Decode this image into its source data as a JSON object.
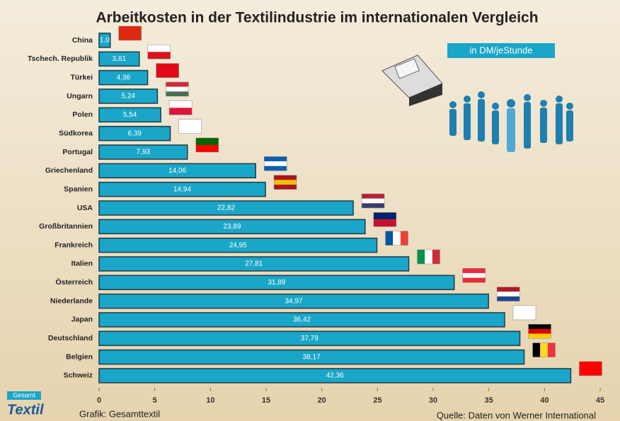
{
  "chart_data": {
    "type": "bar",
    "orientation": "horizontal",
    "title": "Arbeitkosten in der Textilindustrie im internationalen Vergleich",
    "unit_note": "in DM/jeStunde",
    "credit": "Grafik: Gesamttextil",
    "source": "Quelle: Daten von Werner International",
    "logo_top": "Gesamt",
    "logo_main": "Textil",
    "categories": [
      "China",
      "Tschech. Republik",
      "Türkei",
      "Ungarn",
      "Polen",
      "Südkorea",
      "Portugal",
      "Griechenland",
      "Spanien",
      "USA",
      "Großbritannien",
      "Frankreich",
      "Italien",
      "Österreich",
      "Niederlande",
      "Japan",
      "Deutschland",
      "Belgien",
      "Schweiz"
    ],
    "values": [
      1.0,
      3.61,
      4.36,
      5.24,
      5.54,
      6.39,
      7.93,
      14.06,
      14.94,
      22.82,
      23.89,
      24.95,
      27.81,
      31.89,
      34.97,
      36.42,
      37.79,
      38.17,
      42.36
    ],
    "value_labels": [
      "1,0",
      "3,61",
      "4,36",
      "5,24",
      "5,54",
      "6,39",
      "7,93",
      "14,06",
      "14,94",
      "22,82",
      "23,89",
      "24,95",
      "27,81",
      "31,89",
      "34,97",
      "36,42",
      "37,79",
      "38,17",
      "42,36"
    ],
    "color": "#1aa6c8",
    "xlim": [
      0,
      45
    ],
    "xticks": [
      0,
      5,
      10,
      15,
      20,
      25,
      30,
      35,
      40,
      45
    ]
  }
}
